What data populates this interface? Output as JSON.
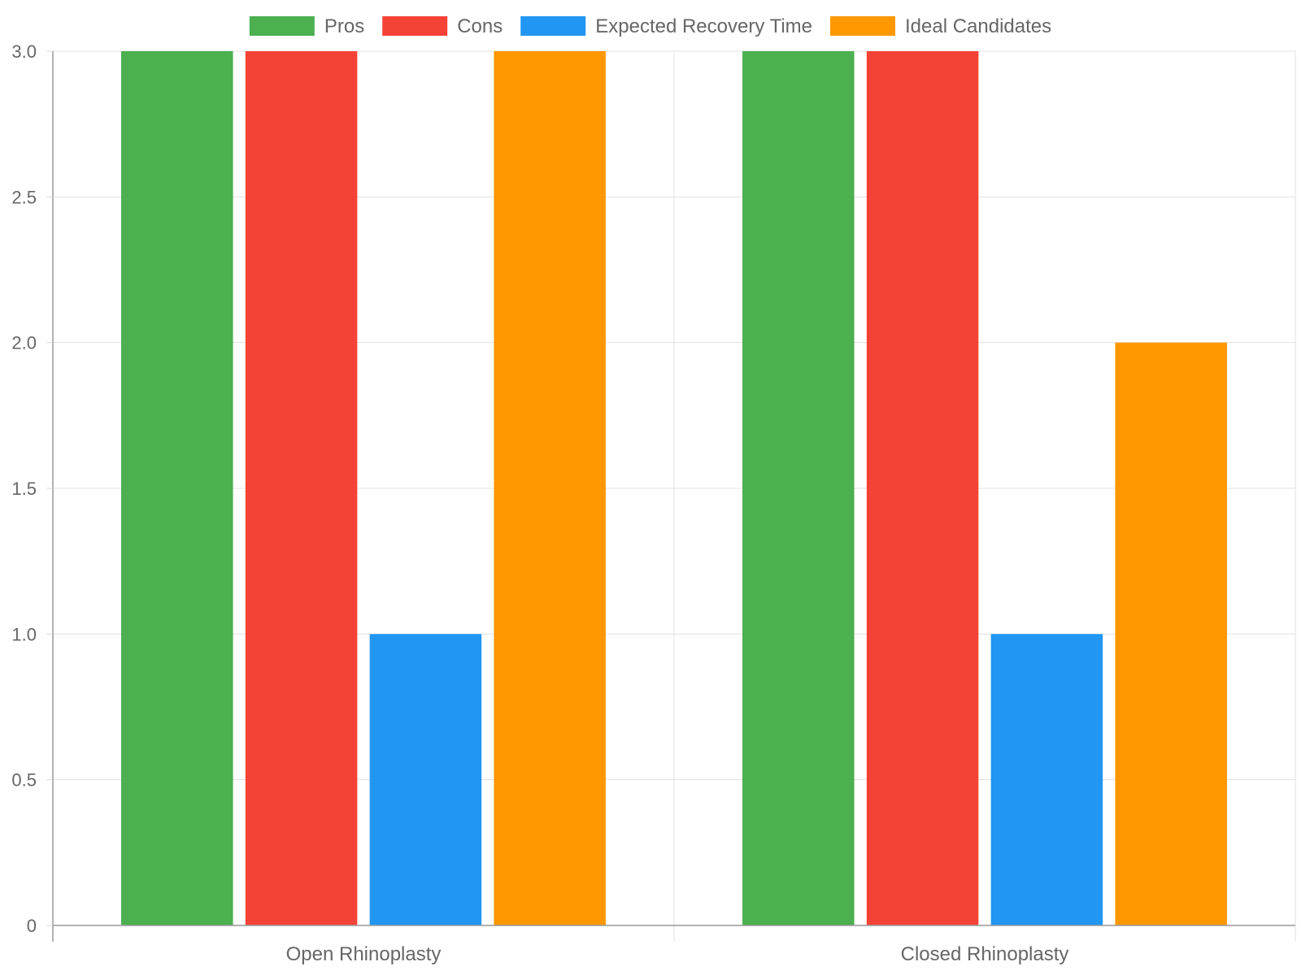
{
  "chart_data": {
    "type": "bar",
    "categories": [
      "Open Rhinoplasty",
      "Closed Rhinoplasty"
    ],
    "series": [
      {
        "name": "Pros",
        "values": [
          3,
          3
        ],
        "color": "#4CAF50"
      },
      {
        "name": "Cons",
        "values": [
          3,
          3
        ],
        "color": "#F44336"
      },
      {
        "name": "Expected Recovery Time",
        "values": [
          1,
          1
        ],
        "color": "#2196F3"
      },
      {
        "name": "Ideal Candidates",
        "values": [
          3,
          2
        ],
        "color": "#FF9800"
      }
    ],
    "ylim": [
      0,
      3
    ],
    "yticks": [
      "0",
      "0.5",
      "1.0",
      "1.5",
      "2.0",
      "2.5",
      "3.0"
    ],
    "ytick_values": [
      0,
      0.5,
      1,
      1.5,
      2,
      2.5,
      3
    ],
    "grid": true,
    "legend": "top-center"
  }
}
